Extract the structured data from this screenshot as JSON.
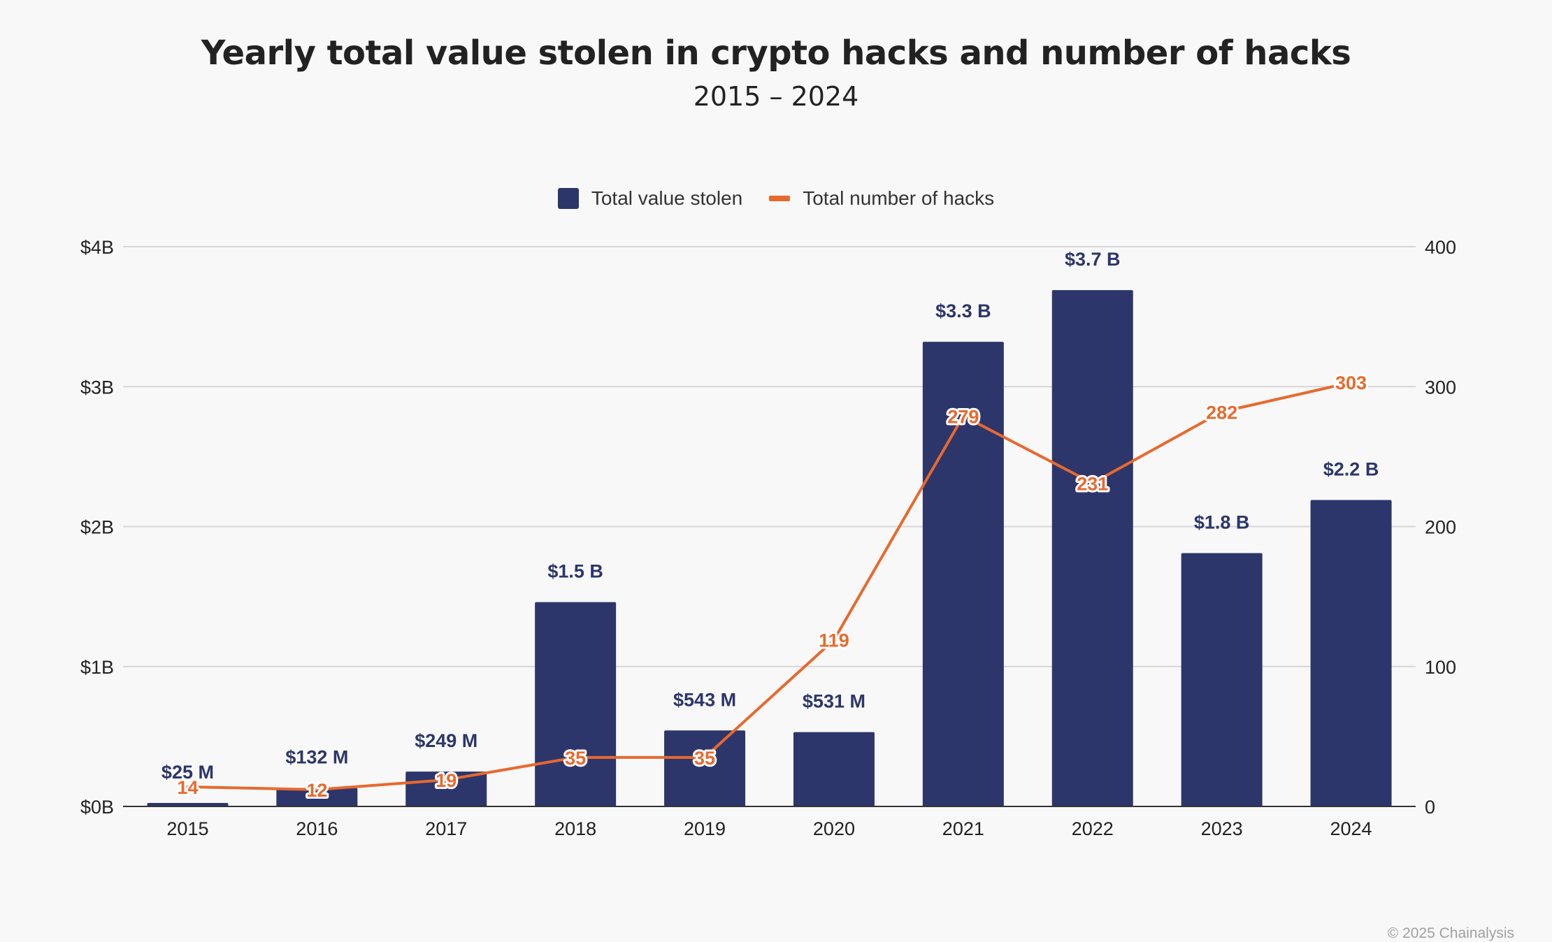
{
  "title": "Yearly total value stolen in crypto hacks and number of hacks",
  "subtitle": "2015 – 2024",
  "copyright": "© 2025 Chainalysis",
  "colors": {
    "bar": "#2c366b",
    "line": "#e8692d",
    "bar_label": "#2c366b",
    "grid": "#d6d6d6",
    "axis": "#333333"
  },
  "chart_data": {
    "type": "bar",
    "categories": [
      "2015",
      "2016",
      "2017",
      "2018",
      "2019",
      "2020",
      "2021",
      "2022",
      "2023",
      "2024"
    ],
    "series": [
      {
        "name": "Total value stolen",
        "type": "bar",
        "axis": "left",
        "unit": "B USD",
        "values": [
          0.025,
          0.132,
          0.249,
          1.46,
          0.543,
          0.531,
          3.32,
          3.69,
          1.81,
          2.19
        ],
        "labels": [
          "$25  M",
          "$132  M",
          "$249  M",
          "$1.5 B",
          "$543  M",
          "$531  M",
          "$3.3 B",
          "$3.7 B",
          "$1.8 B",
          "$2.2 B"
        ]
      },
      {
        "name": "Total number of hacks",
        "type": "line",
        "axis": "right",
        "values": [
          14,
          12,
          19,
          35,
          35,
          119,
          279,
          231,
          282,
          303
        ],
        "labels": [
          "14",
          "12",
          "19",
          "35",
          "35",
          "119",
          "279",
          "231",
          "282",
          "303"
        ]
      }
    ],
    "y_left": {
      "ylim": [
        0,
        4
      ],
      "ticks": [
        0,
        1,
        2,
        3,
        4
      ],
      "tick_labels": [
        "$0B",
        "$1B",
        "$2B",
        "$3B",
        "$4B"
      ]
    },
    "y_right": {
      "ylim": [
        0,
        400
      ],
      "ticks": [
        0,
        100,
        200,
        300,
        400
      ],
      "tick_labels": [
        "0",
        "100",
        "200",
        "300",
        "400"
      ]
    },
    "xlabel": "",
    "ylabel": "",
    "grid": true,
    "legend": "top-center"
  }
}
